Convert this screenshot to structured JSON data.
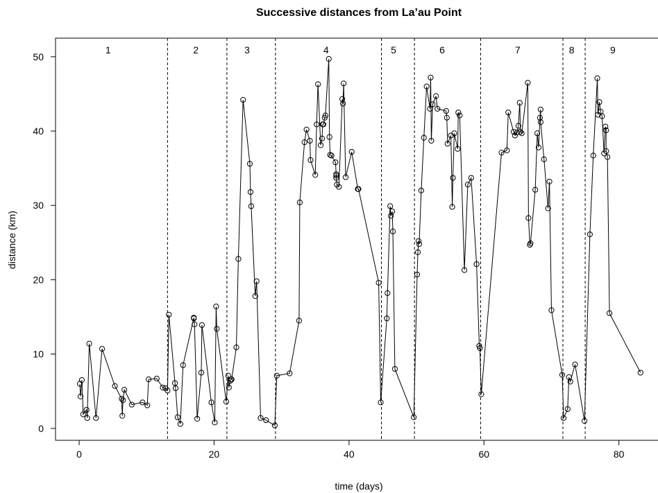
{
  "chart_data": {
    "type": "line",
    "title": "Successive distances from La’au Point",
    "xlabel": "time (days)",
    "ylabel": "distance (km)",
    "xlim": [
      -3.5,
      86
    ],
    "ylim": [
      -1.6,
      52.5
    ],
    "x_ticks": [
      0,
      20,
      40,
      60,
      80
    ],
    "y_ticks": [
      0,
      10,
      20,
      30,
      40,
      50
    ],
    "markers": "open-circle",
    "grid": false,
    "legend": "none",
    "dividers_x": [
      13.1,
      21.9,
      29.1,
      44.8,
      49.7,
      59.5,
      71.7,
      75.0
    ],
    "segment_labels": [
      {
        "label": "1",
        "x": 4.3
      },
      {
        "label": "2",
        "x": 17.3
      },
      {
        "label": "3",
        "x": 24.9
      },
      {
        "label": "4",
        "x": 36.6
      },
      {
        "label": "5",
        "x": 46.6
      },
      {
        "label": "6",
        "x": 53.8
      },
      {
        "label": "7",
        "x": 65.0
      },
      {
        "label": "8",
        "x": 73.0
      },
      {
        "label": "9",
        "x": 79.1
      }
    ],
    "points": [
      {
        "x": 0.1,
        "y": 6.0
      },
      {
        "x": 0.2,
        "y": 4.3
      },
      {
        "x": 0.4,
        "y": 6.5
      },
      {
        "x": 0.6,
        "y": 1.9
      },
      {
        "x": 1.1,
        "y": 2.5
      },
      {
        "x": 1.2,
        "y": 1.4
      },
      {
        "x": 1.5,
        "y": 11.4
      },
      {
        "x": 2.5,
        "y": 1.4
      },
      {
        "x": 3.4,
        "y": 10.7
      },
      {
        "x": 5.3,
        "y": 5.7
      },
      {
        "x": 6.3,
        "y": 4.0
      },
      {
        "x": 6.4,
        "y": 1.7
      },
      {
        "x": 6.5,
        "y": 3.8
      },
      {
        "x": 6.7,
        "y": 5.2
      },
      {
        "x": 7.8,
        "y": 3.2
      },
      {
        "x": 9.4,
        "y": 3.5
      },
      {
        "x": 10.1,
        "y": 3.1
      },
      {
        "x": 10.3,
        "y": 6.6
      },
      {
        "x": 11.5,
        "y": 6.7
      },
      {
        "x": 12.4,
        "y": 5.5
      },
      {
        "x": 12.8,
        "y": 5.4
      },
      {
        "x": 13.1,
        "y": 5.1
      },
      {
        "x": 13.3,
        "y": 15.3
      },
      {
        "x": 14.2,
        "y": 6.1
      },
      {
        "x": 14.3,
        "y": 5.4
      },
      {
        "x": 14.6,
        "y": 1.5
      },
      {
        "x": 15.0,
        "y": 0.6
      },
      {
        "x": 15.4,
        "y": 8.5
      },
      {
        "x": 17.0,
        "y": 14.9
      },
      {
        "x": 17.0,
        "y": 14.8
      },
      {
        "x": 17.1,
        "y": 14.0
      },
      {
        "x": 17.5,
        "y": 1.3
      },
      {
        "x": 18.1,
        "y": 7.5
      },
      {
        "x": 18.2,
        "y": 13.9
      },
      {
        "x": 19.6,
        "y": 3.5
      },
      {
        "x": 20.1,
        "y": 0.8
      },
      {
        "x": 20.3,
        "y": 16.4
      },
      {
        "x": 20.4,
        "y": 13.4
      },
      {
        "x": 21.8,
        "y": 3.6
      },
      {
        "x": 22.1,
        "y": 7.1
      },
      {
        "x": 22.2,
        "y": 5.5
      },
      {
        "x": 22.4,
        "y": 6.4
      },
      {
        "x": 22.5,
        "y": 6.6
      },
      {
        "x": 22.6,
        "y": 6.6
      },
      {
        "x": 23.3,
        "y": 10.9
      },
      {
        "x": 23.6,
        "y": 22.8
      },
      {
        "x": 24.3,
        "y": 44.2
      },
      {
        "x": 25.3,
        "y": 35.6
      },
      {
        "x": 25.4,
        "y": 31.8
      },
      {
        "x": 25.5,
        "y": 29.9
      },
      {
        "x": 26.1,
        "y": 17.8
      },
      {
        "x": 26.3,
        "y": 19.8
      },
      {
        "x": 26.9,
        "y": 1.4
      },
      {
        "x": 27.7,
        "y": 1.1
      },
      {
        "x": 29.0,
        "y": 0.4
      },
      {
        "x": 29.3,
        "y": 7.1
      },
      {
        "x": 31.2,
        "y": 7.4
      },
      {
        "x": 32.6,
        "y": 14.5
      },
      {
        "x": 32.7,
        "y": 30.4
      },
      {
        "x": 33.4,
        "y": 38.5
      },
      {
        "x": 33.7,
        "y": 40.2
      },
      {
        "x": 34.2,
        "y": 38.7
      },
      {
        "x": 34.3,
        "y": 36.1
      },
      {
        "x": 35.0,
        "y": 34.1
      },
      {
        "x": 35.2,
        "y": 40.9
      },
      {
        "x": 35.4,
        "y": 46.3
      },
      {
        "x": 35.8,
        "y": 38.1
      },
      {
        "x": 36.0,
        "y": 39.0
      },
      {
        "x": 36.1,
        "y": 40.9
      },
      {
        "x": 36.2,
        "y": 40.9
      },
      {
        "x": 36.4,
        "y": 41.8
      },
      {
        "x": 36.5,
        "y": 42.1
      },
      {
        "x": 37.0,
        "y": 49.7
      },
      {
        "x": 37.1,
        "y": 39.2
      },
      {
        "x": 37.2,
        "y": 36.8
      },
      {
        "x": 37.4,
        "y": 36.7
      },
      {
        "x": 38.0,
        "y": 35.8
      },
      {
        "x": 38.1,
        "y": 34.0
      },
      {
        "x": 38.1,
        "y": 34.2
      },
      {
        "x": 38.1,
        "y": 33.7
      },
      {
        "x": 38.2,
        "y": 32.8
      },
      {
        "x": 38.5,
        "y": 32.5
      },
      {
        "x": 39.0,
        "y": 44.3
      },
      {
        "x": 39.1,
        "y": 43.7
      },
      {
        "x": 39.2,
        "y": 46.4
      },
      {
        "x": 39.5,
        "y": 33.8
      },
      {
        "x": 40.4,
        "y": 37.2
      },
      {
        "x": 41.3,
        "y": 32.2
      },
      {
        "x": 41.4,
        "y": 32.2
      },
      {
        "x": 44.4,
        "y": 19.6
      },
      {
        "x": 44.7,
        "y": 3.5
      },
      {
        "x": 45.6,
        "y": 14.8
      },
      {
        "x": 45.7,
        "y": 18.2
      },
      {
        "x": 46.1,
        "y": 29.9
      },
      {
        "x": 46.2,
        "y": 28.6
      },
      {
        "x": 46.4,
        "y": 29.2
      },
      {
        "x": 46.5,
        "y": 26.5
      },
      {
        "x": 46.8,
        "y": 8.0
      },
      {
        "x": 49.6,
        "y": 1.5
      },
      {
        "x": 50.1,
        "y": 20.7
      },
      {
        "x": 50.2,
        "y": 23.7
      },
      {
        "x": 50.3,
        "y": 25.2
      },
      {
        "x": 50.4,
        "y": 24.8
      },
      {
        "x": 50.7,
        "y": 32.0
      },
      {
        "x": 51.1,
        "y": 39.1
      },
      {
        "x": 51.5,
        "y": 46.0
      },
      {
        "x": 52.0,
        "y": 43.0
      },
      {
        "x": 52.1,
        "y": 47.2
      },
      {
        "x": 52.2,
        "y": 38.7
      },
      {
        "x": 52.4,
        "y": 43.6
      },
      {
        "x": 52.9,
        "y": 44.7
      },
      {
        "x": 53.1,
        "y": 43.0
      },
      {
        "x": 54.4,
        "y": 42.7
      },
      {
        "x": 54.5,
        "y": 41.8
      },
      {
        "x": 54.6,
        "y": 38.3
      },
      {
        "x": 55.1,
        "y": 39.4
      },
      {
        "x": 55.3,
        "y": 29.8
      },
      {
        "x": 55.4,
        "y": 33.7
      },
      {
        "x": 55.6,
        "y": 39.7
      },
      {
        "x": 56.1,
        "y": 37.6
      },
      {
        "x": 56.2,
        "y": 42.5
      },
      {
        "x": 56.4,
        "y": 42.1
      },
      {
        "x": 57.1,
        "y": 21.3
      },
      {
        "x": 57.6,
        "y": 32.8
      },
      {
        "x": 58.1,
        "y": 33.7
      },
      {
        "x": 58.9,
        "y": 22.1
      },
      {
        "x": 59.3,
        "y": 11.1
      },
      {
        "x": 59.4,
        "y": 10.8
      },
      {
        "x": 59.6,
        "y": 4.6
      },
      {
        "x": 62.6,
        "y": 37.1
      },
      {
        "x": 63.4,
        "y": 37.4
      },
      {
        "x": 63.6,
        "y": 42.5
      },
      {
        "x": 64.4,
        "y": 39.9
      },
      {
        "x": 64.6,
        "y": 39.4
      },
      {
        "x": 64.9,
        "y": 39.8
      },
      {
        "x": 65.1,
        "y": 40.7
      },
      {
        "x": 65.3,
        "y": 43.8
      },
      {
        "x": 65.4,
        "y": 39.9
      },
      {
        "x": 65.6,
        "y": 39.7
      },
      {
        "x": 66.5,
        "y": 46.5
      },
      {
        "x": 66.6,
        "y": 28.3
      },
      {
        "x": 66.8,
        "y": 24.7
      },
      {
        "x": 66.9,
        "y": 24.9
      },
      {
        "x": 67.6,
        "y": 32.1
      },
      {
        "x": 67.9,
        "y": 39.7
      },
      {
        "x": 68.1,
        "y": 37.8
      },
      {
        "x": 68.3,
        "y": 41.8
      },
      {
        "x": 68.4,
        "y": 42.9
      },
      {
        "x": 68.4,
        "y": 41.2
      },
      {
        "x": 68.9,
        "y": 36.2
      },
      {
        "x": 69.5,
        "y": 29.6
      },
      {
        "x": 69.7,
        "y": 33.2
      },
      {
        "x": 70.0,
        "y": 15.9
      },
      {
        "x": 71.6,
        "y": 7.2
      },
      {
        "x": 71.8,
        "y": 1.4
      },
      {
        "x": 72.4,
        "y": 2.6
      },
      {
        "x": 72.6,
        "y": 6.9
      },
      {
        "x": 72.8,
        "y": 6.3
      },
      {
        "x": 73.5,
        "y": 8.6
      },
      {
        "x": 74.9,
        "y": 1.0
      },
      {
        "x": 75.7,
        "y": 26.1
      },
      {
        "x": 76.2,
        "y": 36.7
      },
      {
        "x": 76.8,
        "y": 47.1
      },
      {
        "x": 76.9,
        "y": 42.2
      },
      {
        "x": 77.1,
        "y": 43.9
      },
      {
        "x": 77.3,
        "y": 42.6
      },
      {
        "x": 77.5,
        "y": 42.0
      },
      {
        "x": 77.8,
        "y": 37.0
      },
      {
        "x": 78.0,
        "y": 40.6
      },
      {
        "x": 78.1,
        "y": 40.1
      },
      {
        "x": 78.1,
        "y": 37.3
      },
      {
        "x": 78.3,
        "y": 36.5
      },
      {
        "x": 78.6,
        "y": 15.5
      },
      {
        "x": 83.2,
        "y": 7.5
      }
    ]
  }
}
